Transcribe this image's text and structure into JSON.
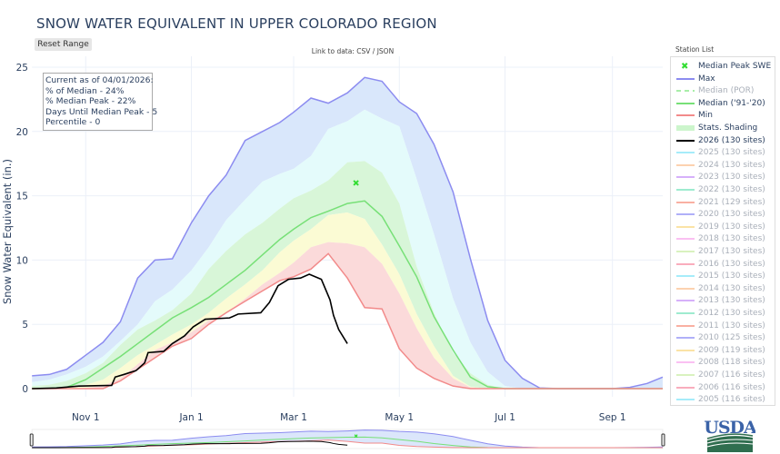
{
  "title": "SNOW WATER EQUIVALENT IN UPPER COLORADO REGION",
  "reset_range_label": "Reset Range",
  "data_link": {
    "prefix": "Link to data: ",
    "csv": "CSV",
    "sep": " / ",
    "json": "JSON"
  },
  "info_box": {
    "line1": "Current as of 04/01/2026:",
    "line2": "% of Median - 24%",
    "line3": "% Median Peak - 22%",
    "line4": "Days Until Median Peak - 5",
    "line5": "Percentile - 0"
  },
  "legend": {
    "title": "Station List",
    "items": [
      {
        "label": "Median Peak SWE",
        "color": "#33dd33",
        "type": "marker",
        "active": true
      },
      {
        "label": "Max",
        "color": "#8c8cf0",
        "type": "line",
        "active": true
      },
      {
        "label": "Median (POR)",
        "color": "#a8eea8",
        "type": "dash",
        "active": false
      },
      {
        "label": "Median ('91-'20)",
        "color": "#77e077",
        "type": "line",
        "active": true
      },
      {
        "label": "Min",
        "color": "#f28a8a",
        "type": "line",
        "active": true
      },
      {
        "label": "Stats. Shading",
        "color": "#ccf5cc",
        "type": "band",
        "active": true
      },
      {
        "label": "2026 (130 sites)",
        "color": "#000000",
        "type": "line",
        "active": true
      },
      {
        "label": "2025 (130 sites)",
        "color": "#a6ecfa",
        "type": "line",
        "active": false
      },
      {
        "label": "2024 (130 sites)",
        "color": "#fcd2b0",
        "type": "line",
        "active": false
      },
      {
        "label": "2023 (130 sites)",
        "color": "#d6b0fa",
        "type": "line",
        "active": false
      },
      {
        "label": "2022 (130 sites)",
        "color": "#9eebcf",
        "type": "line",
        "active": false
      },
      {
        "label": "2021 (129 sites)",
        "color": "#f9b0a2",
        "type": "line",
        "active": false
      },
      {
        "label": "2020 (130 sites)",
        "color": "#b0b0f8",
        "type": "line",
        "active": false
      },
      {
        "label": "2019 (130 sites)",
        "color": "#fbe3a6",
        "type": "line",
        "active": false
      },
      {
        "label": "2018 (130 sites)",
        "color": "#fac0f2",
        "type": "line",
        "active": false
      },
      {
        "label": "2017 (130 sites)",
        "color": "#d9f2bf",
        "type": "line",
        "active": false
      },
      {
        "label": "2016 (130 sites)",
        "color": "#f9adbd",
        "type": "line",
        "active": false
      },
      {
        "label": "2015 (130 sites)",
        "color": "#a6ecfa",
        "type": "line",
        "active": false
      },
      {
        "label": "2014 (130 sites)",
        "color": "#fcd2b0",
        "type": "line",
        "active": false
      },
      {
        "label": "2013 (130 sites)",
        "color": "#d6b0fa",
        "type": "line",
        "active": false
      },
      {
        "label": "2012 (130 sites)",
        "color": "#9eebcf",
        "type": "line",
        "active": false
      },
      {
        "label": "2011 (130 sites)",
        "color": "#f9b0a2",
        "type": "line",
        "active": false
      },
      {
        "label": "2010 (125 sites)",
        "color": "#b0b0f8",
        "type": "line",
        "active": false
      },
      {
        "label": "2009 (119 sites)",
        "color": "#fbe3a6",
        "type": "line",
        "active": false
      },
      {
        "label": "2008 (118 sites)",
        "color": "#fac0f2",
        "type": "line",
        "active": false
      },
      {
        "label": "2007 (116 sites)",
        "color": "#d9f2bf",
        "type": "line",
        "active": false
      },
      {
        "label": "2006 (116 sites)",
        "color": "#f9adbd",
        "type": "line",
        "active": false
      },
      {
        "label": "2005 (116 sites)",
        "color": "#a6ecfa",
        "type": "line",
        "active": false
      }
    ]
  },
  "logo_text": "USDA",
  "chart_data": {
    "type": "line",
    "title": "SNOW WATER EQUIVALENT IN UPPER COLORADO REGION",
    "xlabel": "",
    "ylabel": "Snow Water Equivalent (in.)",
    "xlim": [
      "2025-10-01",
      "2026-09-30"
    ],
    "ylim": [
      0,
      25.5
    ],
    "x_ticks": [
      {
        "date": "2025-11-01",
        "label": "Nov 1"
      },
      {
        "date": "2026-01-01",
        "label": "Jan 1"
      },
      {
        "date": "2026-03-01",
        "label": "Mar 1"
      },
      {
        "date": "2026-05-01",
        "label": "May 1"
      },
      {
        "date": "2026-07-01",
        "label": "Jul 1"
      },
      {
        "date": "2026-09-01",
        "label": "Sep 1"
      }
    ],
    "y_ticks": [
      0,
      5,
      10,
      15,
      20,
      25
    ],
    "grid": true,
    "legend_placement": "right",
    "range_slider": true,
    "dates": [
      "2025-10-01",
      "2025-10-11",
      "2025-10-21",
      "2025-11-01",
      "2025-11-11",
      "2025-11-21",
      "2025-12-01",
      "2025-12-11",
      "2025-12-21",
      "2026-01-01",
      "2026-01-11",
      "2026-01-21",
      "2026-02-01",
      "2026-02-11",
      "2026-02-21",
      "2026-03-01",
      "2026-03-11",
      "2026-03-21",
      "2026-04-01",
      "2026-04-11",
      "2026-04-21",
      "2026-05-01",
      "2026-05-11",
      "2026-05-21",
      "2026-06-01",
      "2026-06-11",
      "2026-06-21",
      "2026-07-01",
      "2026-07-11",
      "2026-07-21",
      "2026-08-01",
      "2026-08-11",
      "2026-08-21",
      "2026-09-01",
      "2026-09-11",
      "2026-09-21",
      "2026-09-30"
    ],
    "series": [
      {
        "name": "Max",
        "color": "#8c8cf0",
        "values": [
          1.0,
          1.1,
          1.5,
          2.6,
          3.6,
          5.2,
          8.6,
          10.0,
          10.1,
          12.9,
          15.0,
          16.6,
          19.3,
          20.0,
          20.7,
          21.5,
          22.6,
          22.2,
          23.0,
          24.2,
          23.9,
          22.3,
          21.4,
          19.0,
          15.3,
          10.1,
          5.3,
          2.2,
          0.8,
          0.05,
          0,
          0,
          0,
          0,
          0.1,
          0.4,
          0.9
        ]
      },
      {
        "name": "Median ('91-'20)",
        "color": "#77e077",
        "values": [
          0,
          0.02,
          0.1,
          0.7,
          1.6,
          2.5,
          3.5,
          4.5,
          5.5,
          6.3,
          7.1,
          8.1,
          9.2,
          10.4,
          11.6,
          12.4,
          13.3,
          13.8,
          14.4,
          14.6,
          13.4,
          11.1,
          8.7,
          5.6,
          3.0,
          0.9,
          0.15,
          0,
          0,
          0,
          0,
          0,
          0,
          0,
          0,
          0,
          0
        ]
      },
      {
        "name": "Min",
        "color": "#f28a8a",
        "values": [
          0,
          0,
          0,
          0,
          0,
          0.6,
          1.5,
          2.4,
          3.3,
          3.9,
          5.0,
          5.9,
          6.8,
          7.6,
          8.4,
          8.7,
          9.3,
          10.5,
          8.6,
          6.3,
          6.2,
          3.1,
          1.6,
          0.8,
          0.2,
          0,
          0,
          0,
          0,
          0,
          0,
          0,
          0,
          0,
          0,
          0,
          0
        ]
      }
    ],
    "stats_shading": {
      "p90": [
        0.5,
        0.7,
        1.1,
        1.7,
        2.5,
        3.7,
        5.0,
        6.8,
        7.7,
        9.2,
        11.0,
        13.1,
        14.7,
        16.1,
        16.7,
        17.1,
        18.1,
        20.2,
        20.8,
        21.7,
        21.0,
        20.4,
        16.3,
        12.0,
        7.0,
        3.6,
        1.3,
        0.2,
        0,
        0,
        0,
        0,
        0,
        0,
        0,
        0,
        0
      ],
      "p70": [
        0.2,
        0.3,
        0.6,
        1.2,
        2.0,
        3.4,
        4.6,
        5.3,
        6.1,
        7.4,
        9.3,
        10.7,
        12.0,
        12.9,
        14.0,
        14.8,
        15.4,
        16.2,
        17.6,
        17.7,
        16.8,
        14.4,
        9.5,
        5.9,
        2.8,
        1.2,
        0.3,
        0,
        0,
        0,
        0,
        0,
        0,
        0,
        0,
        0,
        0
      ],
      "p30": [
        0,
        0,
        0.05,
        0.3,
        0.7,
        1.6,
        2.6,
        3.4,
        4.2,
        5.0,
        5.9,
        7.0,
        8.1,
        9.2,
        10.6,
        11.5,
        12.4,
        13.5,
        13.7,
        13.2,
        11.2,
        8.9,
        5.8,
        3.3,
        1.0,
        0.15,
        0,
        0,
        0,
        0,
        0,
        0,
        0,
        0,
        0,
        0,
        0
      ],
      "p10": [
        0,
        0,
        0,
        0.05,
        0.2,
        0.8,
        1.9,
        3.0,
        3.6,
        4.4,
        5.3,
        5.9,
        7.0,
        8.1,
        9.0,
        9.8,
        11.0,
        11.4,
        11.3,
        11.0,
        9.7,
        7.4,
        4.7,
        2.4,
        0.8,
        0.1,
        0,
        0,
        0,
        0,
        0,
        0,
        0,
        0,
        0,
        0,
        0
      ],
      "colors": {
        "max_p90": "#d9e7fb",
        "p90_p70": "#e4fbfb",
        "p70_p30": "#d8f6d8",
        "p30_p10": "#fbfbd4",
        "p10_min": "#fbdada"
      }
    },
    "current_year": {
      "name": "2026 (130 sites)",
      "color": "#000000",
      "dates": [
        "2025-10-01",
        "2025-10-15",
        "2025-10-28",
        "2025-11-16",
        "2025-11-18",
        "2025-11-23",
        "2025-11-30",
        "2025-12-05",
        "2025-12-07",
        "2025-12-16",
        "2025-12-21",
        "2025-12-28",
        "2026-01-02",
        "2026-01-09",
        "2026-01-23",
        "2026-01-28",
        "2026-02-10",
        "2026-02-15",
        "2026-02-20",
        "2026-02-26",
        "2026-03-05",
        "2026-03-10",
        "2026-03-17",
        "2026-03-22",
        "2026-03-24",
        "2026-03-27",
        "2026-04-01"
      ],
      "values": [
        0,
        0.05,
        0.2,
        0.25,
        0.9,
        1.1,
        1.4,
        2.0,
        2.8,
        2.9,
        3.5,
        4.1,
        4.8,
        5.4,
        5.5,
        5.8,
        5.9,
        6.7,
        8.0,
        8.5,
        8.6,
        8.9,
        8.5,
        6.9,
        5.7,
        4.6,
        3.5
      ]
    },
    "median_peak": {
      "name": "Median Peak SWE",
      "date": "2026-04-06",
      "value": 16.0,
      "color": "#33dd33"
    }
  }
}
